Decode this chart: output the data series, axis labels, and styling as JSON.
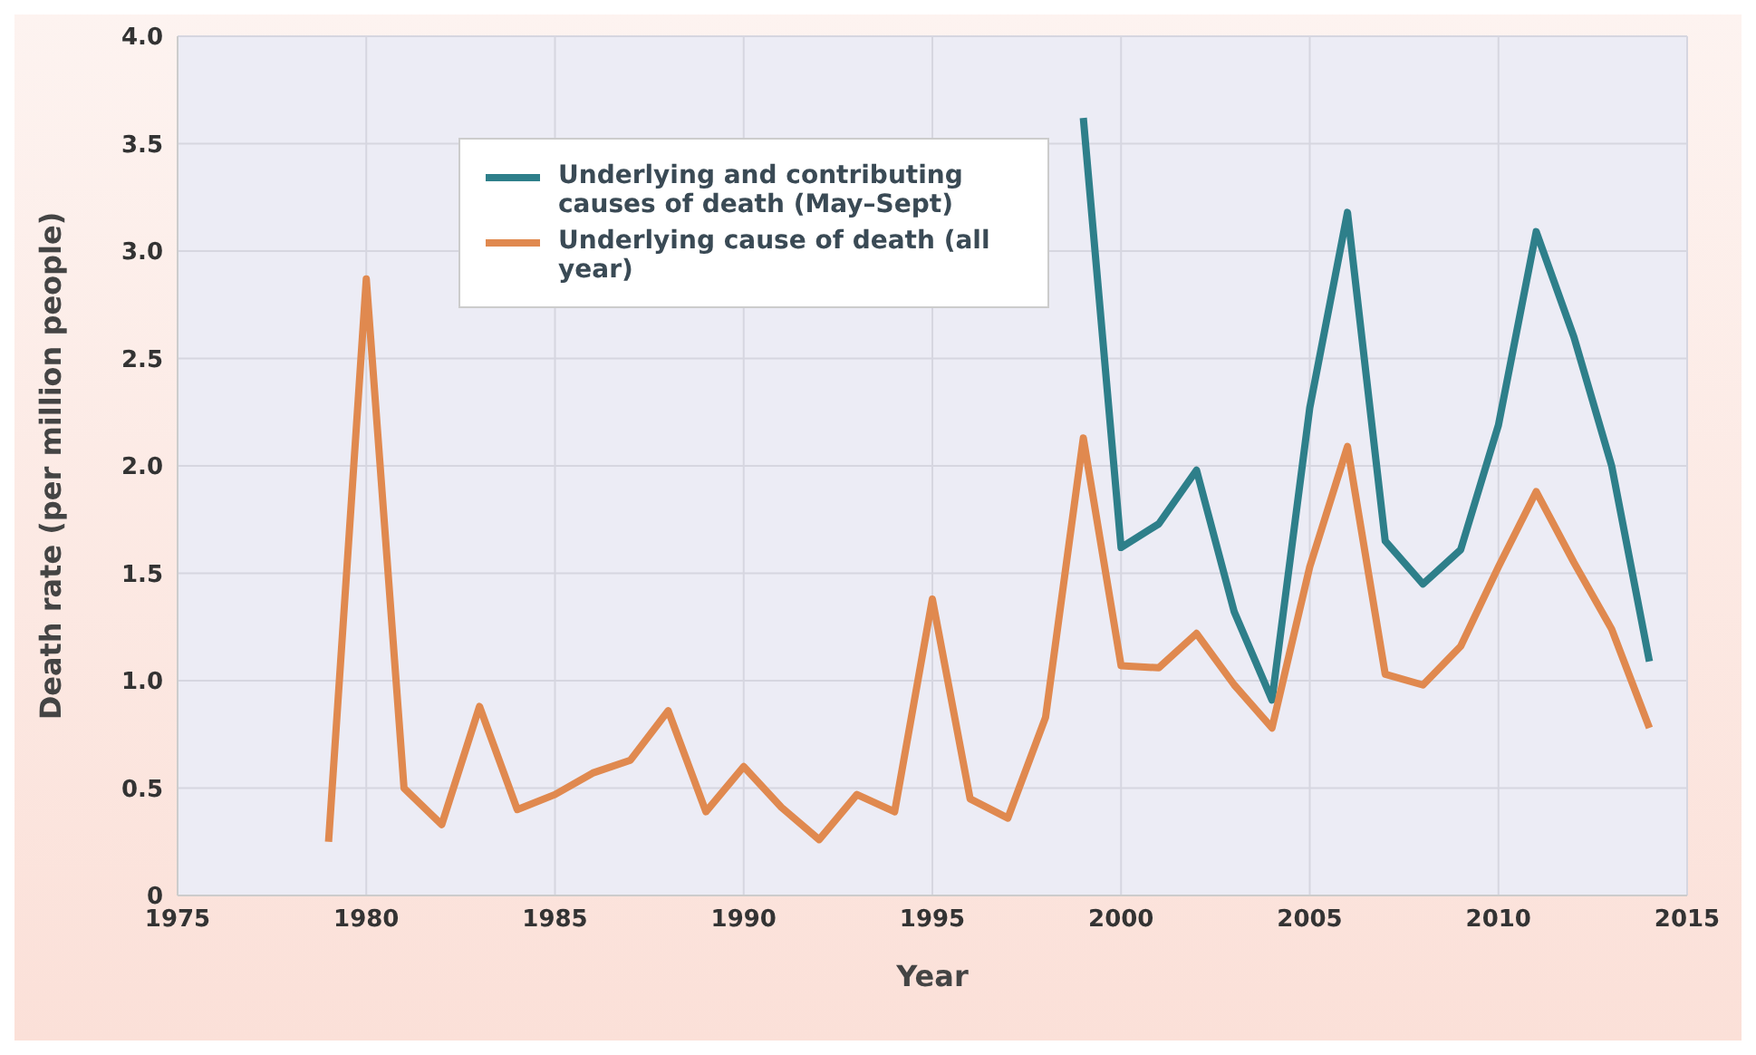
{
  "chart_data": {
    "type": "line",
    "xlabel": "Year",
    "ylabel": "Death rate (per million people)",
    "x": [
      1979,
      1980,
      1981,
      1982,
      1983,
      1984,
      1985,
      1986,
      1987,
      1988,
      1989,
      1990,
      1991,
      1992,
      1993,
      1994,
      1995,
      1996,
      1997,
      1998,
      1999,
      2000,
      2001,
      2002,
      2003,
      2004,
      2005,
      2006,
      2007,
      2008,
      2009,
      2010,
      2011,
      2012,
      2013,
      2014
    ],
    "series": [
      {
        "name": "Underlying and contributing causes of death (May–Sept)",
        "color": "#2e7f8a",
        "values": [
          null,
          null,
          null,
          null,
          null,
          null,
          null,
          null,
          null,
          null,
          null,
          null,
          null,
          null,
          null,
          null,
          null,
          null,
          null,
          null,
          3.62,
          1.62,
          1.73,
          1.98,
          1.32,
          0.91,
          2.27,
          3.18,
          1.65,
          1.45,
          1.61,
          2.19,
          3.09,
          2.6,
          2.0,
          1.09
        ]
      },
      {
        "name": "Underlying cause of death (all year)",
        "color": "#e0894f",
        "values": [
          0.25,
          2.87,
          0.5,
          0.33,
          0.88,
          0.4,
          0.47,
          0.57,
          0.63,
          0.86,
          0.39,
          0.6,
          0.41,
          0.26,
          0.47,
          0.39,
          1.38,
          0.45,
          0.36,
          0.83,
          2.13,
          1.07,
          1.06,
          1.22,
          0.98,
          0.78,
          1.53,
          2.09,
          1.03,
          0.98,
          1.16,
          1.53,
          1.88,
          1.55,
          1.24,
          0.78
        ]
      }
    ],
    "xlim": [
      1975,
      2015
    ],
    "xticks": [
      1975,
      1980,
      1985,
      1990,
      1995,
      2000,
      2005,
      2010,
      2015
    ],
    "ylim": [
      0,
      4
    ],
    "yticks": [
      {
        "value": 0,
        "label": "0"
      },
      0.5,
      {
        "value": 1,
        "label": "1.0"
      },
      1.5,
      {
        "value": 2,
        "label": "2.0"
      },
      2.5,
      {
        "value": 3,
        "label": "3.0"
      },
      3.5,
      {
        "value": 4,
        "label": "4.0"
      }
    ],
    "grid": true,
    "legend": "top left",
    "marker": "none",
    "line_style": "solid"
  }
}
